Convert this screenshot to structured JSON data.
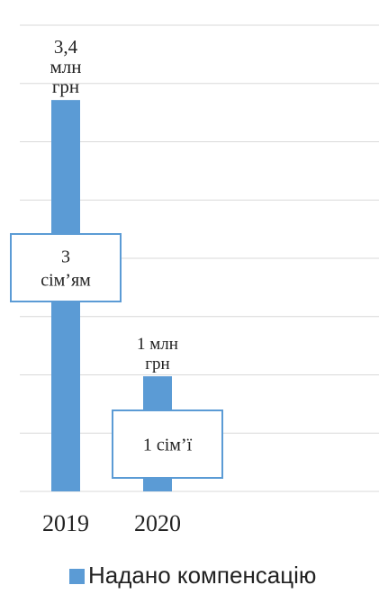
{
  "chart_data": {
    "type": "bar",
    "categories": [
      "2019",
      "2020"
    ],
    "series": [
      {
        "name": "Надано компенсацію",
        "values": [
          3.4,
          1
        ]
      }
    ],
    "ylim": [
      0,
      4.05
    ],
    "grid": true,
    "legend": "bottom",
    "color": "#5b9bd5",
    "data_labels": [
      [
        "3,4",
        "млн",
        "грн"
      ],
      [
        "1 млн",
        "грн"
      ]
    ],
    "annotations": [
      [
        "3",
        "сім’ям"
      ],
      [
        "1 сім’ї"
      ]
    ]
  }
}
